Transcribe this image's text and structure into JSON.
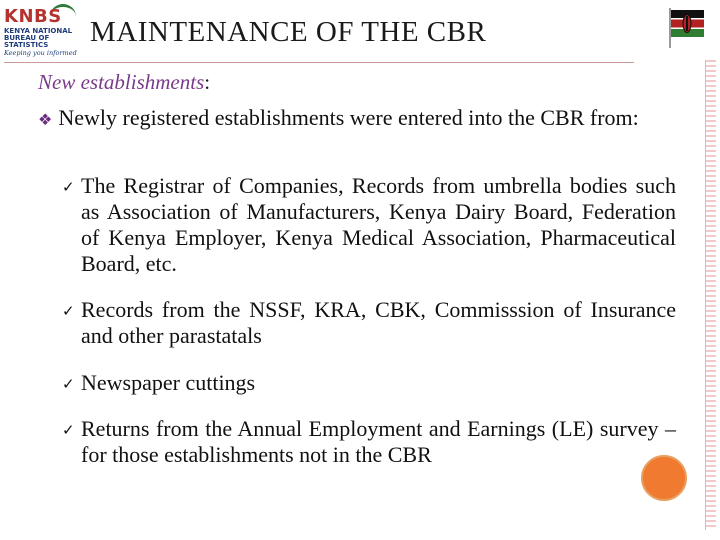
{
  "logo": {
    "name": "KNBS",
    "subtitle_line1": "KENYA NATIONAL",
    "subtitle_line2": "BUREAU OF STATISTICS",
    "tagline": "Keeping you informed"
  },
  "title": "MAINTENANCE OF THE CBR",
  "subheading": {
    "italic": "New establishments",
    "suffix": ":"
  },
  "intro": {
    "bullet_icon": "diamond-bullet-icon",
    "text": "Newly registered establishments were entered into the CBR from:"
  },
  "items": [
    "The Registrar of Companies, Records from umbrella bodies such as Association of Manufacturers, Kenya Dairy Board, Federation of Kenya Employer, Kenya Medical Association, Pharmaceutical Board, etc.",
    "Records from the NSSF, KRA, CBK, Commisssion of Insurance  and other parastatals",
    "Newspaper cuttings",
    "Returns from the Annual Employment and Earnings (LE) survey – for those establishments not in the CBR"
  ],
  "colors": {
    "accent_purple": "#7a3a8a",
    "logo_red": "#b5332e",
    "logo_blue": "#1f3d7a",
    "dot_orange": "#f07a30"
  }
}
